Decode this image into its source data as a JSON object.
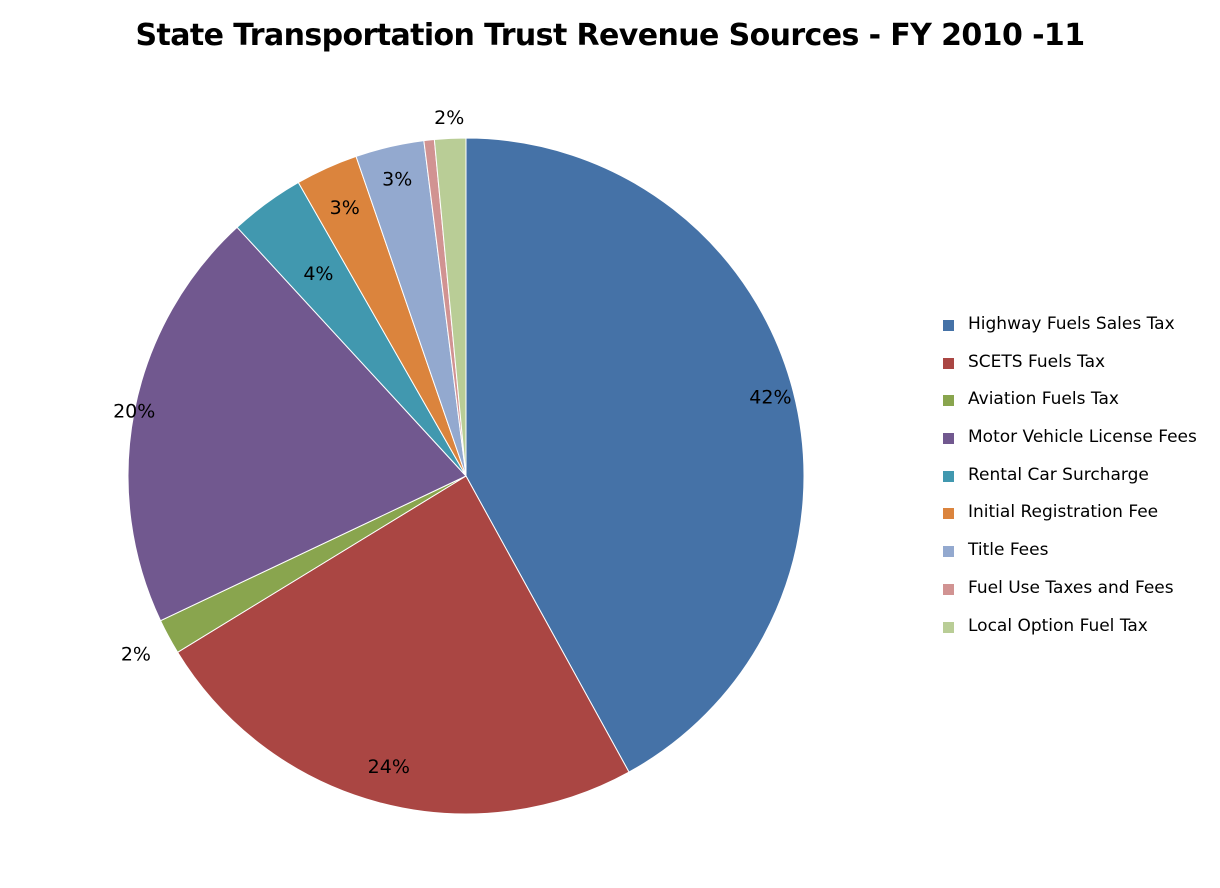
{
  "chart_data": {
    "type": "pie",
    "title": "State Transportation Trust Revenue Sources - FY 2010 -11",
    "categories": [
      "Highway Fuels Sales Tax",
      "SCETS Fuels Tax",
      "Aviation Fuels Tax",
      "Motor Vehicle License Fees",
      "Rental Car Surcharge",
      "Initial Registration Fee",
      "Title Fees",
      "Fuel Use Taxes and Fees",
      "Local Option Fuel Tax"
    ],
    "values": [
      42.2,
      24.4,
      1.7,
      20.3,
      3.6,
      3.0,
      3.3,
      0.5,
      1.5
    ],
    "data_labels": [
      "42%",
      "24%",
      "2%",
      "20%",
      "4%",
      "3%",
      "3%",
      "",
      "2%"
    ],
    "colors": [
      "#4572A7",
      "#AA4643",
      "#89A54E",
      "#71588F",
      "#4198AF",
      "#DB843D",
      "#93A9CF",
      "#D19392",
      "#B9CD96"
    ],
    "start_angle_deg": 0,
    "direction": "clockwise",
    "legend_position": "right"
  }
}
